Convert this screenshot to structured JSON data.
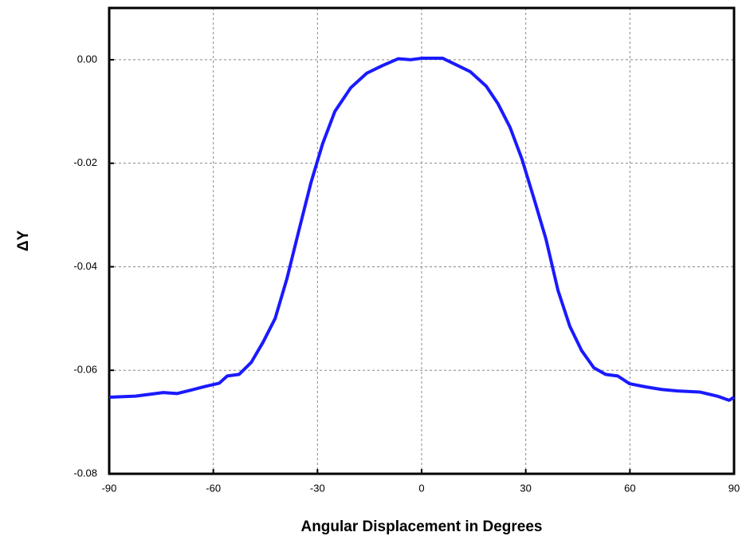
{
  "chart_data": {
    "type": "line",
    "xlabel": "Angular Displacement in Degrees",
    "ylabel": "ΔY",
    "xlim": [
      -90,
      90
    ],
    "ylim": [
      -0.08,
      0.01
    ],
    "xticks": [
      -90,
      -60,
      -30,
      0,
      30,
      60,
      90
    ],
    "yticks": [
      {
        "value": 0,
        "label": "0.00"
      },
      -0.02,
      -0.04,
      -0.06,
      -0.08
    ],
    "grid": true,
    "series": [
      {
        "color": "#1a1aff",
        "x": [
          -90,
          -82.4,
          -74.4,
          -70.5,
          -66.3,
          -62.2,
          -58.3,
          -56,
          -52.6,
          -49.1,
          -45.7,
          -42.2,
          -38.8,
          -35.4,
          -31.9,
          -28.5,
          -25,
          -20.4,
          -15.8,
          -11.2,
          -6.7,
          -3.2,
          0.2,
          6,
          9.4,
          14,
          18.6,
          22,
          25.5,
          28.9,
          32.4,
          35.8,
          39.3,
          42.7,
          46.1,
          49.6,
          53,
          56.5,
          59.9,
          64.5,
          69.1,
          73.7,
          80.1,
          85.2,
          88.6,
          90
        ],
        "values": [
          -0.0652,
          -0.065,
          -0.0643,
          -0.0645,
          -0.0638,
          -0.0631,
          -0.0625,
          -0.0611,
          -0.0608,
          -0.0585,
          -0.0546,
          -0.05,
          -0.0423,
          -0.0331,
          -0.0238,
          -0.0162,
          -0.01,
          -0.0054,
          -0.0026,
          -0.0011,
          0.0002,
          0,
          0.0003,
          0.0003,
          -0.0008,
          -0.0023,
          -0.0051,
          -0.0085,
          -0.0131,
          -0.0192,
          -0.0269,
          -0.0346,
          -0.0446,
          -0.0515,
          -0.0562,
          -0.0595,
          -0.0608,
          -0.0611,
          -0.0626,
          -0.0632,
          -0.0637,
          -0.064,
          -0.0642,
          -0.065,
          -0.0658,
          -0.0652
        ]
      }
    ]
  }
}
